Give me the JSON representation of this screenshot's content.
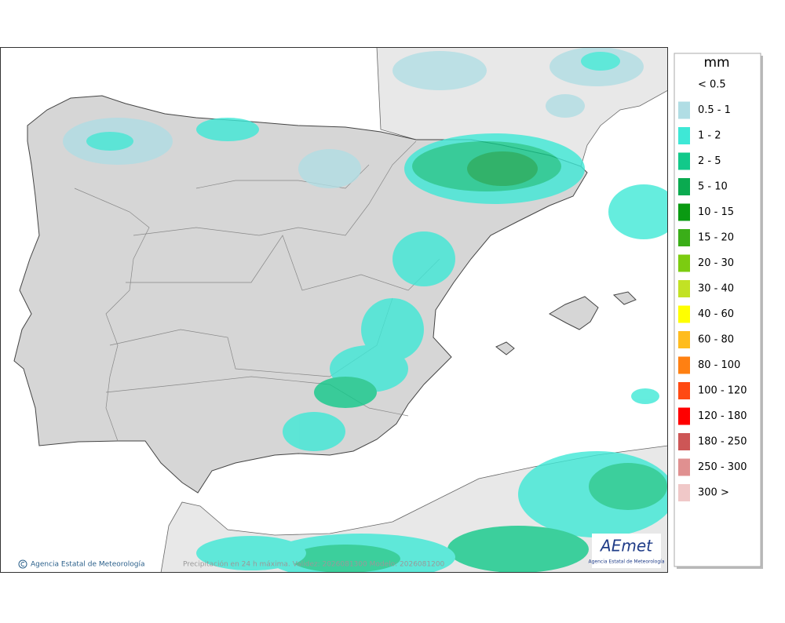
{
  "legend": {
    "title": "mm",
    "items": [
      {
        "label": "< 0.5"
      },
      {
        "label": "0.5 - 1",
        "color": "#b0dde4"
      },
      {
        "label": "1 - 2",
        "color": "#3ee8d6"
      },
      {
        "label": "2 - 5",
        "color": "#12c98a"
      },
      {
        "label": "5 - 10",
        "color": "#0aaa50"
      },
      {
        "label": "10 - 15",
        "color": "#0a9a12"
      },
      {
        "label": "15 - 20",
        "color": "#3aae18"
      },
      {
        "label": "20 - 30",
        "color": "#7ccc10"
      },
      {
        "label": "30 - 40",
        "color": "#c2e224"
      },
      {
        "label": "40 - 60",
        "color": "#ffff00"
      },
      {
        "label": "60 - 80",
        "color": "#ffbc1e"
      },
      {
        "label": "80 - 100",
        "color": "#ff8012"
      },
      {
        "label": "100 - 120",
        "color": "#ff4a12"
      },
      {
        "label": "120 - 180",
        "color": "#ff0000"
      },
      {
        "label": "180 - 250",
        "color": "#cd5656"
      },
      {
        "label": "250 - 300",
        "color": "#e09090"
      },
      {
        "label": "300 >",
        "color": "#f0c8c8"
      }
    ]
  },
  "credit": "Agencia Estatal de Meteorología",
  "caption": "Precipitación en 24 h máxima. Validez: 2026081300 Modelo: 2026081200",
  "logo": {
    "name": "AEmet",
    "subtitle": "Agencia Estatal de Meteorología"
  }
}
